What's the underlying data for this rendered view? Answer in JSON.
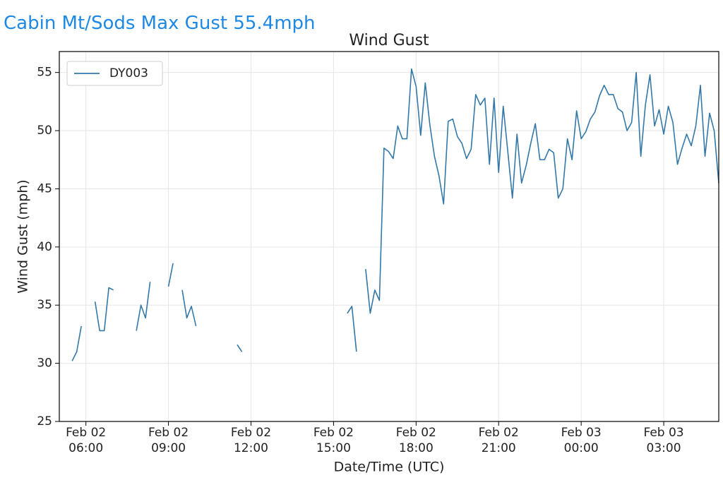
{
  "header": "Cabin Mt/Sods Max Gust 55.4mph",
  "chart_data": {
    "type": "line",
    "title": "Wind Gust",
    "xlabel": "Date/Time (UTC)",
    "ylabel": "Wind Gust (mph)",
    "x": [
      "Feb 02 05:30",
      "Feb 02 05:40",
      "Feb 02 05:50",
      "Feb 02 06:00",
      "Feb 02 06:20",
      "Feb 02 06:30",
      "Feb 02 06:40",
      "Feb 02 06:50",
      "Feb 02 07:00",
      "Feb 02 07:10",
      "Feb 02 07:50",
      "Feb 02 08:00",
      "Feb 02 08:10",
      "Feb 02 08:20",
      "Feb 02 08:30",
      "Feb 02 09:00",
      "Feb 02 09:10",
      "Feb 02 09:20",
      "Feb 02 09:30",
      "Feb 02 09:40",
      "Feb 02 09:50",
      "Feb 02 10:00",
      "Feb 02 10:10",
      "Feb 02 11:30",
      "Feb 02 11:40",
      "Feb 02 11:50",
      "Feb 02 15:30",
      "Feb 02 15:40",
      "Feb 02 15:50",
      "Feb 02 16:00",
      "Feb 02 16:10",
      "Feb 02 16:20",
      "Feb 02 16:30",
      "Feb 02 16:40",
      "Feb 02 16:50",
      "Feb 02 17:00",
      "Feb 02 17:10",
      "Feb 02 17:20",
      "Feb 02 17:30",
      "Feb 02 17:40",
      "Feb 02 17:50",
      "Feb 02 18:00",
      "Feb 02 18:10",
      "Feb 02 18:20",
      "Feb 02 18:30",
      "Feb 02 18:40",
      "Feb 02 18:50",
      "Feb 02 19:00",
      "Feb 02 19:10",
      "Feb 02 19:20",
      "Feb 02 19:30",
      "Feb 02 19:40",
      "Feb 02 19:50",
      "Feb 02 20:00",
      "Feb 02 20:10",
      "Feb 02 20:20",
      "Feb 02 20:30",
      "Feb 02 20:40",
      "Feb 02 20:50",
      "Feb 02 21:00",
      "Feb 02 21:10",
      "Feb 02 21:20",
      "Feb 02 21:30",
      "Feb 02 21:40",
      "Feb 02 21:50",
      "Feb 02 22:00",
      "Feb 02 22:10",
      "Feb 02 22:20",
      "Feb 02 22:30",
      "Feb 02 22:40",
      "Feb 02 22:50",
      "Feb 02 23:00",
      "Feb 02 23:10",
      "Feb 02 23:20",
      "Feb 02 23:30",
      "Feb 02 23:40",
      "Feb 02 23:50",
      "Feb 03 00:00",
      "Feb 03 00:10",
      "Feb 03 00:20",
      "Feb 03 00:30",
      "Feb 03 00:40",
      "Feb 03 00:50",
      "Feb 03 01:00",
      "Feb 03 01:10",
      "Feb 03 01:20",
      "Feb 03 01:30",
      "Feb 03 01:40",
      "Feb 03 01:50",
      "Feb 03 02:00",
      "Feb 03 02:10",
      "Feb 03 02:20",
      "Feb 03 02:30",
      "Feb 03 02:40",
      "Feb 03 02:50",
      "Feb 03 03:00",
      "Feb 03 03:10",
      "Feb 03 03:20",
      "Feb 03 03:30",
      "Feb 03 03:40",
      "Feb 03 03:50",
      "Feb 03 04:00",
      "Feb 03 04:10",
      "Feb 03 04:20",
      "Feb 03 04:30",
      "Feb 03 04:40",
      "Feb 03 04:50",
      "Feb 03 05:00"
    ],
    "series": [
      {
        "name": "DY003",
        "color": "#3478a8",
        "values": [
          30.2,
          31.0,
          33.2,
          null,
          35.3,
          32.8,
          32.8,
          36.5,
          36.3,
          null,
          32.8,
          35.0,
          33.9,
          37.0,
          null,
          36.6,
          38.6,
          null,
          36.3,
          33.9,
          34.9,
          33.2,
          null,
          31.6,
          31.0,
          null,
          34.3,
          34.9,
          31.0,
          null,
          38.1,
          34.3,
          36.3,
          35.4,
          48.5,
          48.2,
          47.6,
          50.4,
          49.3,
          49.3,
          55.3,
          53.8,
          49.6,
          54.1,
          50.5,
          47.8,
          46.1,
          43.7,
          50.8,
          51.0,
          49.5,
          48.9,
          47.6,
          48.4,
          53.1,
          52.2,
          52.8,
          47.1,
          52.8,
          46.4,
          52.1,
          48.2,
          44.2,
          49.7,
          45.5,
          47.0,
          48.9,
          50.6,
          47.5,
          47.5,
          48.4,
          48.1,
          44.2,
          45.0,
          49.3,
          47.5,
          51.7,
          49.3,
          49.9,
          51.0,
          51.6,
          53.0,
          53.9,
          53.1,
          53.1,
          51.9,
          51.6,
          50.0,
          50.7,
          55.0,
          47.8,
          52.2,
          54.8,
          50.4,
          51.8,
          49.7,
          52.1,
          50.7,
          47.1,
          48.5,
          49.7,
          48.7,
          50.4,
          53.9,
          47.8,
          51.5,
          50.0,
          45.5
        ]
      }
    ],
    "xlim": [
      "Feb 02 05:02",
      "Feb 03 05:00"
    ],
    "xticks": [
      "Feb 02 06:00",
      "Feb 02 09:00",
      "Feb 02 12:00",
      "Feb 02 15:00",
      "Feb 02 18:00",
      "Feb 02 21:00",
      "Feb 03 00:00",
      "Feb 03 03:00"
    ],
    "ylim": [
      25,
      56.8
    ],
    "yticks": [
      25,
      30,
      35,
      40,
      45,
      50,
      55
    ],
    "grid": true,
    "legend": "upper left"
  }
}
